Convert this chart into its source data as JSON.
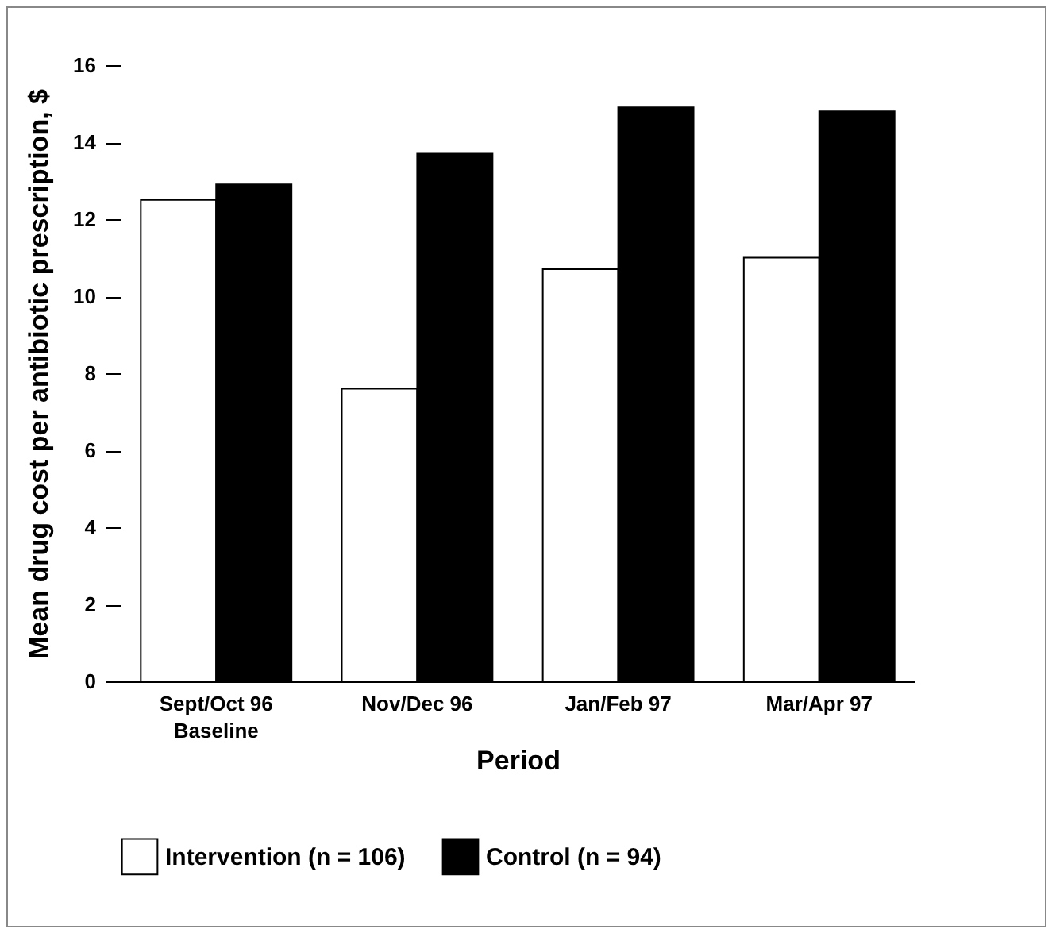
{
  "chart_data": {
    "type": "bar",
    "xlabel": "Period",
    "ylabel": "Mean drug cost per antibiotic prescription, $",
    "categories": [
      "Sept/Oct 96\nBaseline",
      "Nov/Dec 96",
      "Jan/Feb 97",
      "Mar/Apr 97"
    ],
    "series": [
      {
        "name": "Intervention (n = 106)",
        "color": "#ffffff",
        "values": [
          12.5,
          7.6,
          10.7,
          11.0
        ]
      },
      {
        "name": "Control (n = 94)",
        "color": "#000000",
        "values": [
          12.9,
          13.7,
          14.9,
          14.8
        ]
      }
    ],
    "ylim": [
      0,
      16
    ],
    "yticks": [
      0,
      2,
      4,
      6,
      8,
      10,
      12,
      14,
      16
    ],
    "grid": false,
    "legend": "bottom"
  }
}
